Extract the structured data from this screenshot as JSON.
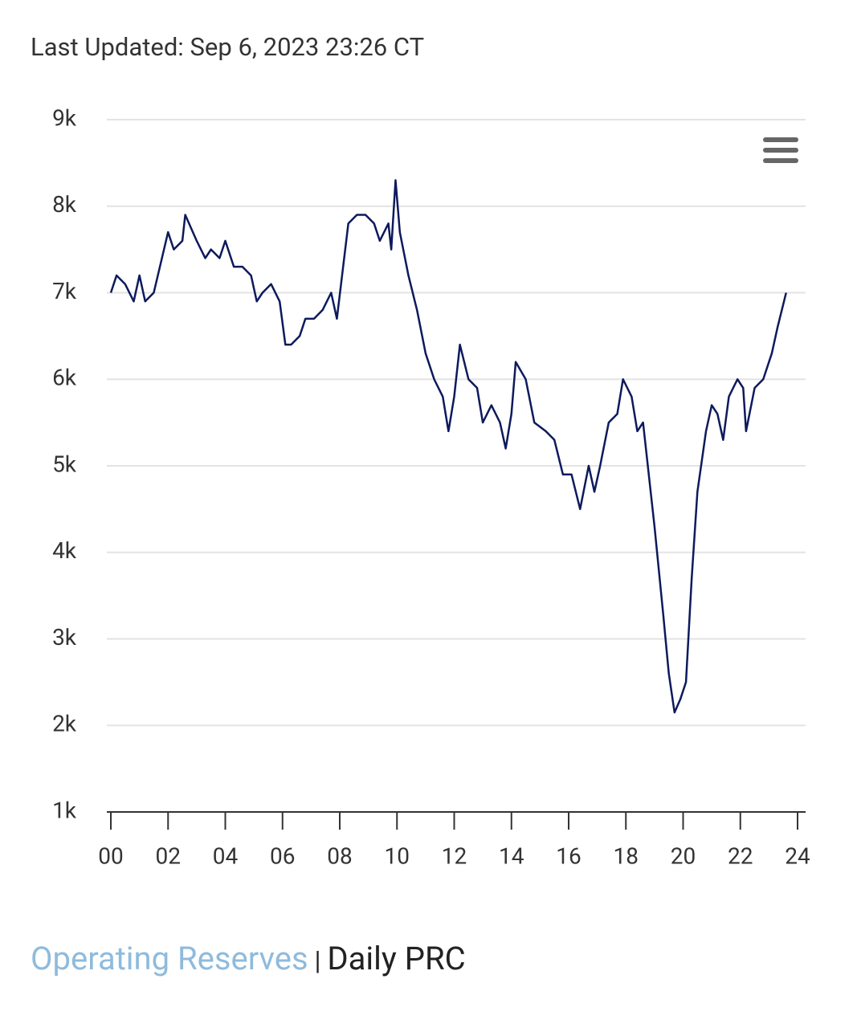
{
  "header": {
    "last_updated": "Last Updated: Sep 6, 2023 23:26 CT"
  },
  "chart_data": {
    "type": "line",
    "x": [
      2000.0,
      2000.2,
      2000.5,
      2000.8,
      2001.0,
      2001.2,
      2001.5,
      2002.0,
      2002.2,
      2002.5,
      2002.6,
      2003.0,
      2003.3,
      2003.5,
      2003.8,
      2004.0,
      2004.3,
      2004.6,
      2004.9,
      2005.1,
      2005.3,
      2005.6,
      2005.9,
      2006.1,
      2006.3,
      2006.6,
      2006.8,
      2007.1,
      2007.4,
      2007.7,
      2007.9,
      2008.3,
      2008.6,
      2008.9,
      2009.2,
      2009.4,
      2009.7,
      2009.8,
      2009.95,
      2010.1,
      2010.4,
      2010.7,
      2011.0,
      2011.3,
      2011.6,
      2011.8,
      2012.0,
      2012.2,
      2012.5,
      2012.8,
      2013.0,
      2013.3,
      2013.6,
      2013.8,
      2014.0,
      2014.15,
      2014.5,
      2014.8,
      2015.2,
      2015.5,
      2015.8,
      2016.1,
      2016.4,
      2016.7,
      2016.9,
      2017.1,
      2017.4,
      2017.7,
      2017.9,
      2018.2,
      2018.4,
      2018.6,
      2018.8,
      2019.0,
      2019.3,
      2019.5,
      2019.7,
      2019.9,
      2020.1,
      2020.3,
      2020.5,
      2020.8,
      2021.0,
      2021.2,
      2021.4,
      2021.6,
      2021.9,
      2022.1,
      2022.2,
      2022.5,
      2022.8,
      2023.1,
      2023.3,
      2023.6
    ],
    "series": [
      {
        "color": "#0d1a5c",
        "values": [
          7000,
          7200,
          7100,
          6900,
          7200,
          6900,
          7000,
          7700,
          7500,
          7600,
          7900,
          7600,
          7400,
          7500,
          7400,
          7600,
          7300,
          7300,
          7200,
          6900,
          7000,
          7100,
          6900,
          6400,
          6400,
          6500,
          6700,
          6700,
          6800,
          7000,
          6700,
          7800,
          7900,
          7900,
          7800,
          7600,
          7800,
          7500,
          8300,
          7700,
          7200,
          6800,
          6300,
          6000,
          5800,
          5400,
          5800,
          6400,
          6000,
          5900,
          5500,
          5700,
          5500,
          5200,
          5600,
          6200,
          6000,
          5500,
          5400,
          5300,
          4900,
          4900,
          4500,
          5000,
          4700,
          5000,
          5500,
          5600,
          6000,
          5800,
          5400,
          5500,
          4900,
          4300,
          3300,
          2600,
          2150,
          2300,
          2500,
          3700,
          4700,
          5400,
          5700,
          5600,
          5300,
          5800,
          6000,
          5900,
          5400,
          5900,
          6000,
          6300,
          6600,
          7000
        ]
      }
    ],
    "xlim": [
      2000,
      2024
    ],
    "xticks": [
      {
        "value": 2000,
        "label": "00"
      },
      {
        "value": 2002,
        "label": "02"
      },
      {
        "value": 2004,
        "label": "04"
      },
      {
        "value": 2006,
        "label": "06"
      },
      {
        "value": 2008,
        "label": "08"
      },
      {
        "value": 2010,
        "label": "10"
      },
      {
        "value": 2012,
        "label": "12"
      },
      {
        "value": 2014,
        "label": "14"
      },
      {
        "value": 2016,
        "label": "16"
      },
      {
        "value": 2018,
        "label": "18"
      },
      {
        "value": 2020,
        "label": "20"
      },
      {
        "value": 2022,
        "label": "22"
      },
      {
        "value": 2024,
        "label": "24"
      }
    ],
    "ylim": [
      1000,
      9000
    ],
    "yticks": [
      {
        "value": 1000,
        "label": "1k"
      },
      {
        "value": 2000,
        "label": "2k"
      },
      {
        "value": 3000,
        "label": "3k"
      },
      {
        "value": 4000,
        "label": "4k"
      },
      {
        "value": 5000,
        "label": "5k"
      },
      {
        "value": 6000,
        "label": "6k"
      },
      {
        "value": 7000,
        "label": "7k"
      },
      {
        "value": 8000,
        "label": "8k"
      },
      {
        "value": 9000,
        "label": "9k"
      }
    ],
    "grid": true
  },
  "footer": {
    "link": "Operating Reserves",
    "separator": "|",
    "current": "Daily PRC"
  }
}
